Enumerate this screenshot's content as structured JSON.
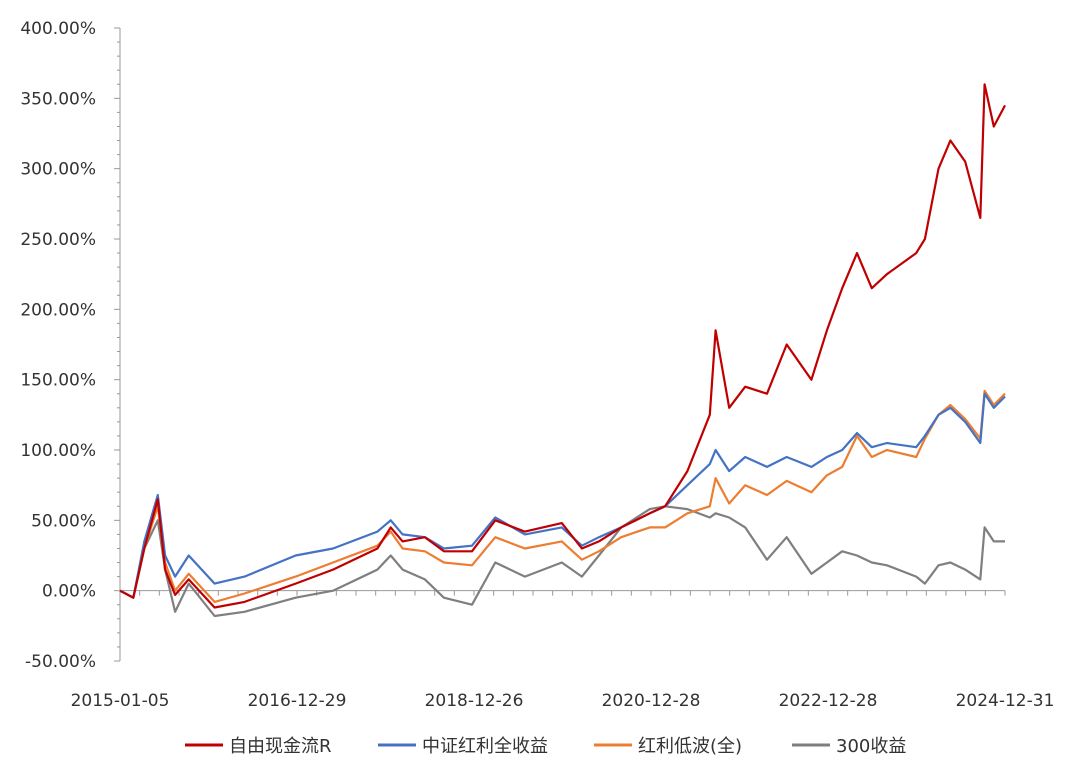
{
  "chart_data": {
    "type": "line",
    "title": "",
    "xlabel": "",
    "ylabel": "",
    "x_tick_labels": [
      "2015-01-05",
      "2016-12-29",
      "2018-12-26",
      "2020-12-28",
      "2022-12-28",
      "2024-12-31"
    ],
    "y_tick_labels": [
      "400.00%",
      "350.00%",
      "300.00%",
      "250.00%",
      "200.00%",
      "150.00%",
      "100.00%",
      "50.00%",
      "0.00%",
      "-50.00%"
    ],
    "ylim": [
      -50,
      400
    ],
    "xlim": [
      "2015-01-05",
      "2024-12-31"
    ],
    "grid": false,
    "legend_position": "bottom",
    "series": [
      {
        "name": "自由现金流R",
        "color": "#c00000",
        "points": [
          [
            "2015-01-05",
            0
          ],
          [
            "2015-03-01",
            -5
          ],
          [
            "2015-04-15",
            30
          ],
          [
            "2015-06-10",
            65
          ],
          [
            "2015-07-10",
            15
          ],
          [
            "2015-08-20",
            -3
          ],
          [
            "2015-10-15",
            8
          ],
          [
            "2016-01-30",
            -12
          ],
          [
            "2016-06-01",
            -8
          ],
          [
            "2016-12-29",
            5
          ],
          [
            "2017-06-01",
            15
          ],
          [
            "2017-12-01",
            30
          ],
          [
            "2018-01-25",
            45
          ],
          [
            "2018-03-15",
            35
          ],
          [
            "2018-06-15",
            38
          ],
          [
            "2018-09-01",
            28
          ],
          [
            "2018-12-26",
            28
          ],
          [
            "2019-04-01",
            50
          ],
          [
            "2019-08-01",
            42
          ],
          [
            "2019-12-31",
            48
          ],
          [
            "2020-03-23",
            30
          ],
          [
            "2020-06-01",
            35
          ],
          [
            "2020-09-01",
            45
          ],
          [
            "2020-12-28",
            55
          ],
          [
            "2021-03-01",
            60
          ],
          [
            "2021-06-01",
            85
          ],
          [
            "2021-09-01",
            125
          ],
          [
            "2021-09-25",
            185
          ],
          [
            "2021-11-20",
            130
          ],
          [
            "2022-01-25",
            145
          ],
          [
            "2022-04-25",
            140
          ],
          [
            "2022-07-15",
            175
          ],
          [
            "2022-10-25",
            150
          ],
          [
            "2022-12-28",
            185
          ],
          [
            "2023-03-01",
            215
          ],
          [
            "2023-05-01",
            240
          ],
          [
            "2023-07-01",
            215
          ],
          [
            "2023-09-01",
            225
          ],
          [
            "2023-12-31",
            240
          ],
          [
            "2024-02-05",
            250
          ],
          [
            "2024-04-01",
            300
          ],
          [
            "2024-05-20",
            320
          ],
          [
            "2024-07-20",
            305
          ],
          [
            "2024-09-20",
            265
          ],
          [
            "2024-10-08",
            360
          ],
          [
            "2024-11-15",
            330
          ],
          [
            "2024-12-31",
            345
          ]
        ]
      },
      {
        "name": "中证红利全收益",
        "color": "#4472c4",
        "points": [
          [
            "2015-01-05",
            0
          ],
          [
            "2015-03-01",
            -5
          ],
          [
            "2015-04-15",
            35
          ],
          [
            "2015-06-10",
            68
          ],
          [
            "2015-07-10",
            25
          ],
          [
            "2015-08-20",
            10
          ],
          [
            "2015-10-15",
            25
          ],
          [
            "2016-01-30",
            5
          ],
          [
            "2016-06-01",
            10
          ],
          [
            "2016-12-29",
            25
          ],
          [
            "2017-06-01",
            30
          ],
          [
            "2017-12-01",
            42
          ],
          [
            "2018-01-25",
            50
          ],
          [
            "2018-03-15",
            40
          ],
          [
            "2018-06-15",
            38
          ],
          [
            "2018-09-01",
            30
          ],
          [
            "2018-12-26",
            32
          ],
          [
            "2019-04-01",
            52
          ],
          [
            "2019-08-01",
            40
          ],
          [
            "2019-12-31",
            45
          ],
          [
            "2020-03-23",
            32
          ],
          [
            "2020-06-01",
            38
          ],
          [
            "2020-09-01",
            45
          ],
          [
            "2020-12-28",
            55
          ],
          [
            "2021-03-01",
            60
          ],
          [
            "2021-06-01",
            75
          ],
          [
            "2021-09-01",
            90
          ],
          [
            "2021-09-25",
            100
          ],
          [
            "2021-11-20",
            85
          ],
          [
            "2022-01-25",
            95
          ],
          [
            "2022-04-25",
            88
          ],
          [
            "2022-07-15",
            95
          ],
          [
            "2022-10-25",
            88
          ],
          [
            "2022-12-28",
            95
          ],
          [
            "2023-03-01",
            100
          ],
          [
            "2023-05-01",
            112
          ],
          [
            "2023-07-01",
            102
          ],
          [
            "2023-09-01",
            105
          ],
          [
            "2023-12-31",
            102
          ],
          [
            "2024-02-05",
            110
          ],
          [
            "2024-04-01",
            125
          ],
          [
            "2024-05-20",
            130
          ],
          [
            "2024-07-20",
            120
          ],
          [
            "2024-09-20",
            105
          ],
          [
            "2024-10-08",
            140
          ],
          [
            "2024-11-15",
            130
          ],
          [
            "2024-12-31",
            138
          ]
        ]
      },
      {
        "name": "红利低波(全)",
        "color": "#ed7d31",
        "points": [
          [
            "2015-01-05",
            0
          ],
          [
            "2015-03-01",
            -5
          ],
          [
            "2015-04-15",
            30
          ],
          [
            "2015-06-10",
            60
          ],
          [
            "2015-07-10",
            20
          ],
          [
            "2015-08-20",
            0
          ],
          [
            "2015-10-15",
            12
          ],
          [
            "2016-01-30",
            -8
          ],
          [
            "2016-06-01",
            -2
          ],
          [
            "2016-12-29",
            10
          ],
          [
            "2017-06-01",
            20
          ],
          [
            "2017-12-01",
            32
          ],
          [
            "2018-01-25",
            42
          ],
          [
            "2018-03-15",
            30
          ],
          [
            "2018-06-15",
            28
          ],
          [
            "2018-09-01",
            20
          ],
          [
            "2018-12-26",
            18
          ],
          [
            "2019-04-01",
            38
          ],
          [
            "2019-08-01",
            30
          ],
          [
            "2019-12-31",
            35
          ],
          [
            "2020-03-23",
            22
          ],
          [
            "2020-06-01",
            28
          ],
          [
            "2020-09-01",
            38
          ],
          [
            "2020-12-28",
            45
          ],
          [
            "2021-03-01",
            45
          ],
          [
            "2021-06-01",
            55
          ],
          [
            "2021-09-01",
            60
          ],
          [
            "2021-09-25",
            80
          ],
          [
            "2021-11-20",
            62
          ],
          [
            "2022-01-25",
            75
          ],
          [
            "2022-04-25",
            68
          ],
          [
            "2022-07-15",
            78
          ],
          [
            "2022-10-25",
            70
          ],
          [
            "2022-12-28",
            82
          ],
          [
            "2023-03-01",
            88
          ],
          [
            "2023-05-01",
            110
          ],
          [
            "2023-07-01",
            95
          ],
          [
            "2023-09-01",
            100
          ],
          [
            "2023-12-31",
            95
          ],
          [
            "2024-02-05",
            108
          ],
          [
            "2024-04-01",
            125
          ],
          [
            "2024-05-20",
            132
          ],
          [
            "2024-07-20",
            122
          ],
          [
            "2024-09-20",
            108
          ],
          [
            "2024-10-08",
            142
          ],
          [
            "2024-11-15",
            132
          ],
          [
            "2024-12-31",
            140
          ]
        ]
      },
      {
        "name": "300收益",
        "color": "#7f7f7f",
        "points": [
          [
            "2015-01-05",
            0
          ],
          [
            "2015-03-01",
            -5
          ],
          [
            "2015-04-15",
            30
          ],
          [
            "2015-06-10",
            50
          ],
          [
            "2015-07-10",
            15
          ],
          [
            "2015-08-20",
            -15
          ],
          [
            "2015-10-15",
            5
          ],
          [
            "2016-01-30",
            -18
          ],
          [
            "2016-06-01",
            -15
          ],
          [
            "2016-12-29",
            -5
          ],
          [
            "2017-06-01",
            0
          ],
          [
            "2017-12-01",
            15
          ],
          [
            "2018-01-25",
            25
          ],
          [
            "2018-03-15",
            15
          ],
          [
            "2018-06-15",
            8
          ],
          [
            "2018-09-01",
            -5
          ],
          [
            "2018-12-26",
            -10
          ],
          [
            "2019-04-01",
            20
          ],
          [
            "2019-08-01",
            10
          ],
          [
            "2019-12-31",
            20
          ],
          [
            "2020-03-23",
            10
          ],
          [
            "2020-06-01",
            25
          ],
          [
            "2020-09-01",
            45
          ],
          [
            "2020-12-28",
            58
          ],
          [
            "2021-03-01",
            60
          ],
          [
            "2021-06-01",
            58
          ],
          [
            "2021-09-01",
            52
          ],
          [
            "2021-09-25",
            55
          ],
          [
            "2021-11-20",
            52
          ],
          [
            "2022-01-25",
            45
          ],
          [
            "2022-04-25",
            22
          ],
          [
            "2022-07-15",
            38
          ],
          [
            "2022-10-25",
            12
          ],
          [
            "2022-12-28",
            20
          ],
          [
            "2023-03-01",
            28
          ],
          [
            "2023-05-01",
            25
          ],
          [
            "2023-07-01",
            20
          ],
          [
            "2023-09-01",
            18
          ],
          [
            "2023-12-31",
            10
          ],
          [
            "2024-02-05",
            5
          ],
          [
            "2024-04-01",
            18
          ],
          [
            "2024-05-20",
            20
          ],
          [
            "2024-07-20",
            15
          ],
          [
            "2024-09-20",
            8
          ],
          [
            "2024-10-08",
            45
          ],
          [
            "2024-11-15",
            35
          ],
          [
            "2024-12-31",
            35
          ]
        ]
      }
    ]
  }
}
